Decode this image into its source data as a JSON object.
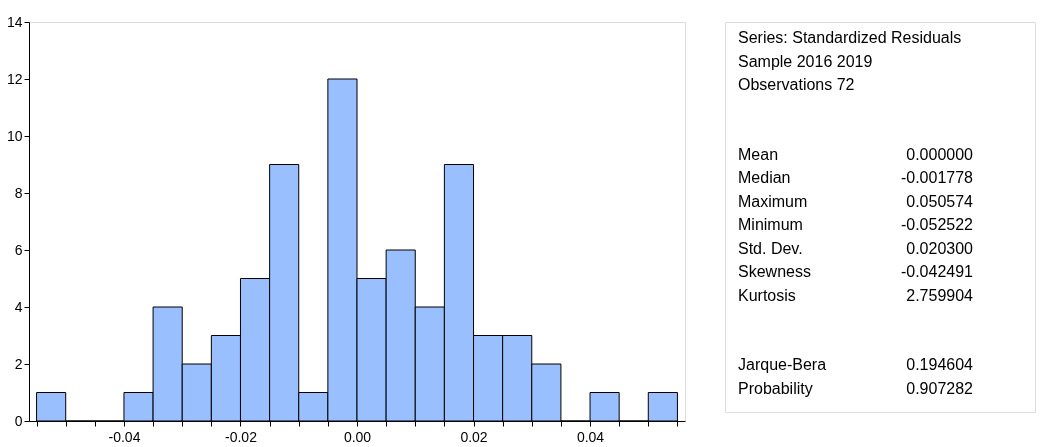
{
  "chart_data": {
    "type": "histogram",
    "color": "#99bfff",
    "bins": [
      -0.055,
      -0.05,
      -0.045,
      -0.04,
      -0.035,
      -0.03,
      -0.025,
      -0.02,
      -0.015,
      -0.01,
      -0.005,
      0.0,
      0.005,
      0.01,
      0.015,
      0.02,
      0.025,
      0.03,
      0.035,
      0.04,
      0.045,
      0.05,
      0.055
    ],
    "values": [
      1,
      0,
      0,
      1,
      4,
      2,
      3,
      5,
      9,
      1,
      12,
      5,
      6,
      4,
      9,
      3,
      3,
      2,
      0,
      1,
      0,
      1
    ],
    "xlim": [
      -0.0563,
      0.0563
    ],
    "xticks": [
      {
        "value": -0.055,
        "label": null
      },
      {
        "value": -0.05,
        "label": null
      },
      {
        "value": -0.045,
        "label": null
      },
      {
        "value": -0.04,
        "label": "-0.04"
      },
      {
        "value": -0.035,
        "label": null
      },
      {
        "value": -0.03,
        "label": null
      },
      {
        "value": -0.025,
        "label": null
      },
      {
        "value": -0.02,
        "label": "-0.02"
      },
      {
        "value": -0.015,
        "label": null
      },
      {
        "value": -0.01,
        "label": null
      },
      {
        "value": -0.005,
        "label": null
      },
      {
        "value": 0.0,
        "label": "0.00"
      },
      {
        "value": 0.005,
        "label": null
      },
      {
        "value": 0.01,
        "label": null
      },
      {
        "value": 0.015,
        "label": null
      },
      {
        "value": 0.02,
        "label": "0.02"
      },
      {
        "value": 0.025,
        "label": null
      },
      {
        "value": 0.03,
        "label": null
      },
      {
        "value": 0.035,
        "label": null
      },
      {
        "value": 0.04,
        "label": "0.04"
      },
      {
        "value": 0.045,
        "label": null
      },
      {
        "value": 0.05,
        "label": null
      },
      {
        "value": 0.055,
        "label": null
      }
    ],
    "ylim": [
      0,
      14
    ],
    "yticks": [
      0,
      2,
      4,
      6,
      8,
      10,
      12,
      14
    ],
    "grid": false,
    "annotations": [
      "Series: Standardized Residuals",
      "Sample 2016 2019",
      "Observations 72",
      "Mean\t0.000000",
      "Median\t-0.001778",
      "Maximum\t0.050574",
      "Minimum\t-0.052522",
      "Std. Dev.\t0.020300",
      "Skewness\t-0.042491",
      "Kurtosis\t2.759904",
      "Jarque-Bera\t0.194604",
      "Probability\t0.907282"
    ]
  }
}
